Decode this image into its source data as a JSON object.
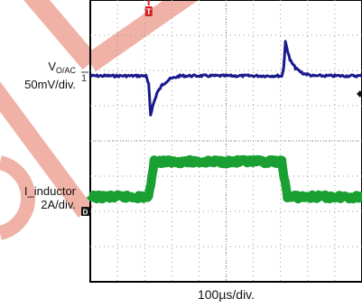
{
  "channel1": {
    "name_main": "V",
    "name_sub": "O/AC",
    "scale": "50mV/div.",
    "marker": "1",
    "color": "#1a1a8c"
  },
  "channel2": {
    "name": "I_inductor",
    "scale": "2A/div.",
    "marker": "D",
    "color": "#1aa032"
  },
  "timebase": "100µs/div.",
  "trigger_marker": "T",
  "trigger_color": "#d42020",
  "watermark_color": "#f0b2a6",
  "screen_background": "#ffffff",
  "chart_data": {
    "type": "line",
    "xlabel": "100µs/div.",
    "x_divisions": 10,
    "y_divisions": 8,
    "series": [
      {
        "name": "V_O/AC",
        "color": "#1a1a8c",
        "units": "divisions",
        "x": [
          0,
          2.05,
          2.15,
          2.22,
          2.3,
          2.45,
          2.65,
          2.9,
          3.3,
          7.05,
          7.12,
          7.18,
          7.25,
          7.35,
          7.55,
          7.8,
          8.2,
          10
        ],
        "values": [
          0,
          0,
          -0.25,
          -1.1,
          -0.85,
          -0.5,
          -0.25,
          -0.1,
          0,
          0,
          0.25,
          0.95,
          0.75,
          0.45,
          0.22,
          0.08,
          0,
          0
        ]
      },
      {
        "name": "I_inductor",
        "color": "#1aa032",
        "units": "divisions",
        "x": [
          0,
          2.15,
          2.35,
          7.05,
          7.25,
          10
        ],
        "values": [
          0,
          0,
          1.0,
          1.0,
          0,
          0
        ]
      }
    ]
  }
}
